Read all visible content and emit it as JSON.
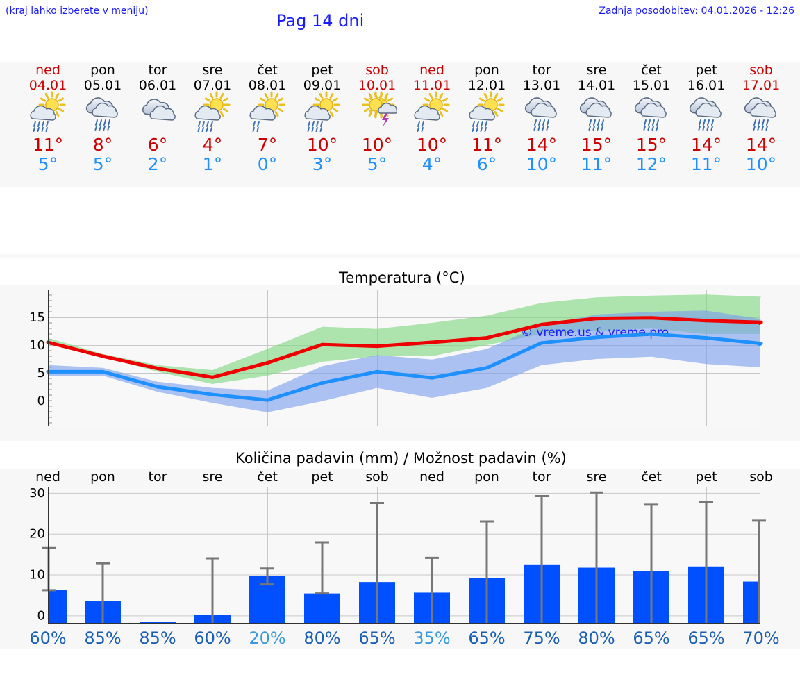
{
  "header": {
    "hint": "(kraj lahko izberete v meniju)",
    "title": "Pag 14 dni",
    "last_update": "Zadnja posodobitev: 04.01.2026 - 12:26"
  },
  "colors": {
    "max": "#cc0000",
    "min": "#1e90ff",
    "bar": "#0050ff",
    "pct_dark": "#1a5fb4",
    "pct_light": "#3a9ad9"
  },
  "days": [
    {
      "name": "ned",
      "date": "04.01",
      "icon": "sun-cloud-rain-icon",
      "max": "11°",
      "min": "5°",
      "weekend": true
    },
    {
      "name": "pon",
      "date": "05.01",
      "icon": "cloud-rain-icon",
      "max": "8°",
      "min": "5°",
      "weekend": false
    },
    {
      "name": "tor",
      "date": "06.01",
      "icon": "cloud-icon",
      "max": "6°",
      "min": "2°",
      "weekend": false
    },
    {
      "name": "sre",
      "date": "07.01",
      "icon": "sun-cloud-rain-icon",
      "max": "4°",
      "min": "1°",
      "weekend": false
    },
    {
      "name": "čet",
      "date": "08.01",
      "icon": "sun-cloud-drizzle-icon",
      "max": "7°",
      "min": "0°",
      "weekend": false
    },
    {
      "name": "pet",
      "date": "09.01",
      "icon": "sun-cloud-rain-icon",
      "max": "10°",
      "min": "3°",
      "weekend": false
    },
    {
      "name": "sob",
      "date": "10.01",
      "icon": "sun-cloud-thunder-icon",
      "max": "10°",
      "min": "5°",
      "weekend": true
    },
    {
      "name": "ned",
      "date": "11.01",
      "icon": "sun-cloud-drizzle-icon",
      "max": "10°",
      "min": "4°",
      "weekend": true
    },
    {
      "name": "pon",
      "date": "12.01",
      "icon": "sun-cloud-rain-icon",
      "max": "11°",
      "min": "6°",
      "weekend": false
    },
    {
      "name": "tor",
      "date": "13.01",
      "icon": "cloud-rain-icon",
      "max": "14°",
      "min": "10°",
      "weekend": false
    },
    {
      "name": "sre",
      "date": "14.01",
      "icon": "cloud-rain-icon",
      "max": "15°",
      "min": "11°",
      "weekend": false
    },
    {
      "name": "čet",
      "date": "15.01",
      "icon": "cloud-rain-icon",
      "max": "15°",
      "min": "12°",
      "weekend": false
    },
    {
      "name": "pet",
      "date": "16.01",
      "icon": "cloud-rain-icon",
      "max": "14°",
      "min": "11°",
      "weekend": false
    },
    {
      "name": "sob",
      "date": "17.01",
      "icon": "cloud-rain-icon",
      "max": "14°",
      "min": "10°",
      "weekend": true
    }
  ],
  "chart_data": [
    {
      "type": "line",
      "title": "Temperatura (°C)",
      "watermark": "© vreme.us & vreme.pro",
      "ylim": [
        -4.5,
        20
      ],
      "yticks": [
        0,
        5,
        10,
        15
      ],
      "x": [
        0,
        1,
        2,
        3,
        4,
        5,
        6,
        7,
        8,
        9,
        10,
        11,
        12,
        13
      ],
      "series": [
        {
          "name": "max",
          "color": "#ee0000",
          "values": [
            10.5,
            8.0,
            5.8,
            4.2,
            6.8,
            10.1,
            9.8,
            10.5,
            11.3,
            13.7,
            14.8,
            14.9,
            14.4,
            14.1
          ]
        },
        {
          "name": "min",
          "color": "#1e90ff",
          "values": [
            5.2,
            5.2,
            2.5,
            1.1,
            0.1,
            3.2,
            5.2,
            4.1,
            5.9,
            10.4,
            11.4,
            12.0,
            11.3,
            10.3
          ]
        }
      ],
      "bands": [
        {
          "name": "max-range",
          "color": "#7fd67f",
          "low": [
            10.2,
            7.9,
            5.2,
            3.0,
            4.5,
            7.0,
            8.0,
            8.0,
            10.0,
            12.0,
            12.6,
            13.0,
            12.0,
            12.0
          ],
          "high": [
            11.3,
            8.4,
            6.4,
            5.5,
            9.3,
            13.3,
            12.9,
            14.0,
            15.3,
            17.6,
            18.6,
            18.9,
            19.1,
            18.7
          ]
        },
        {
          "name": "min-range",
          "color": "#7aa0ee",
          "low": [
            4.4,
            4.5,
            1.6,
            -0.4,
            -2.1,
            -0.1,
            2.3,
            0.5,
            2.3,
            6.4,
            7.5,
            7.9,
            6.6,
            6.0
          ],
          "high": [
            6.4,
            5.9,
            3.4,
            2.3,
            1.8,
            6.2,
            8.2,
            7.4,
            9.3,
            13.6,
            15.5,
            16.0,
            16.2,
            14.7
          ]
        }
      ]
    },
    {
      "type": "bar",
      "title": "Količina padavin (mm) / Možnost padavin (%)",
      "categories": [
        "ned",
        "pon",
        "tor",
        "sre",
        "čet",
        "pet",
        "sob",
        "ned",
        "pon",
        "tor",
        "sre",
        "čet",
        "pet",
        "sob"
      ],
      "ylim": [
        -1.8,
        31.5
      ],
      "yticks": [
        0,
        10,
        20,
        30
      ],
      "values": [
        6.2,
        3.5,
        0,
        0.1,
        9.7,
        5.4,
        8.2,
        5.6,
        9.2,
        12.5,
        11.7,
        10.8,
        12.0,
        8.3
      ],
      "error_high": [
        16.5,
        12.8,
        0,
        14.0,
        11.5,
        17.9,
        27.5,
        14.1,
        23.0,
        29.2,
        30.1,
        27.1,
        27.7,
        23.2
      ],
      "error_low": [
        6.2,
        0,
        0,
        0,
        7.6,
        5.4,
        0,
        0,
        0,
        0,
        0,
        0,
        0,
        0
      ],
      "probability": [
        "60%",
        "85%",
        "85%",
        "60%",
        "20%",
        "80%",
        "65%",
        "35%",
        "65%",
        "75%",
        "80%",
        "65%",
        "65%",
        "70%"
      ]
    }
  ]
}
